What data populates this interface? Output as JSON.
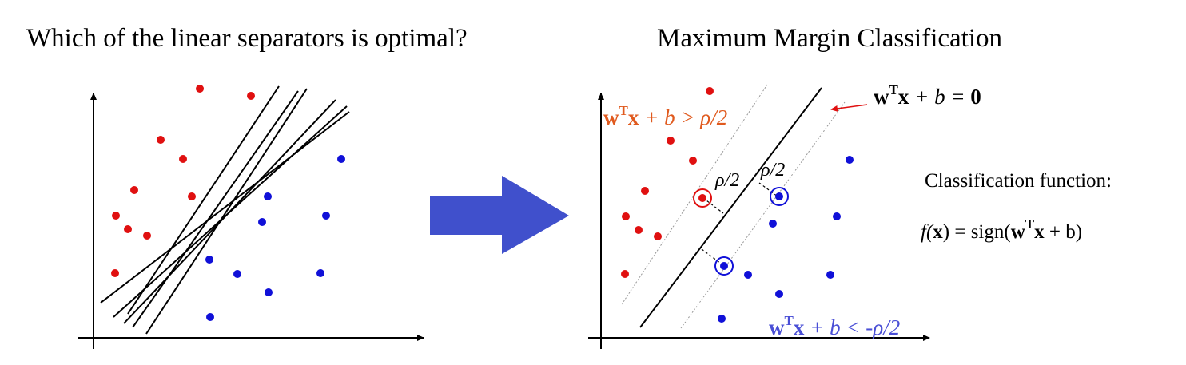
{
  "left_panel": {
    "title": "Which of the linear separators is optimal?"
  },
  "right_panel": {
    "title": "Maximum Margin Classification",
    "upper_margin": {
      "lhs": "w",
      "sup": "T",
      "mid": "x",
      "rest": " + b > ρ/2"
    },
    "lower_margin": {
      "lhs": "w",
      "sup": "T",
      "mid": "x",
      "rest": " + b < -ρ/2"
    },
    "boundary": {
      "lhs": "w",
      "sup": "T",
      "mid": "x",
      "rest": " + b = ",
      "rhs": "0"
    },
    "margin_label_1": "ρ/2",
    "margin_label_2": "ρ/2",
    "classification_label": "Classification function:",
    "classification_function": {
      "pre": "f(",
      "x": "x",
      "mid": ") = sign(",
      "w": "w",
      "sup": "T",
      "x2": "x",
      "post": " + b)"
    }
  },
  "colors": {
    "red_points": "#e01010",
    "blue_points": "#1010d8",
    "arrow": "#4050cc",
    "upper_eq": "#e05a1e",
    "lower_eq": "#4a4fd6"
  }
}
